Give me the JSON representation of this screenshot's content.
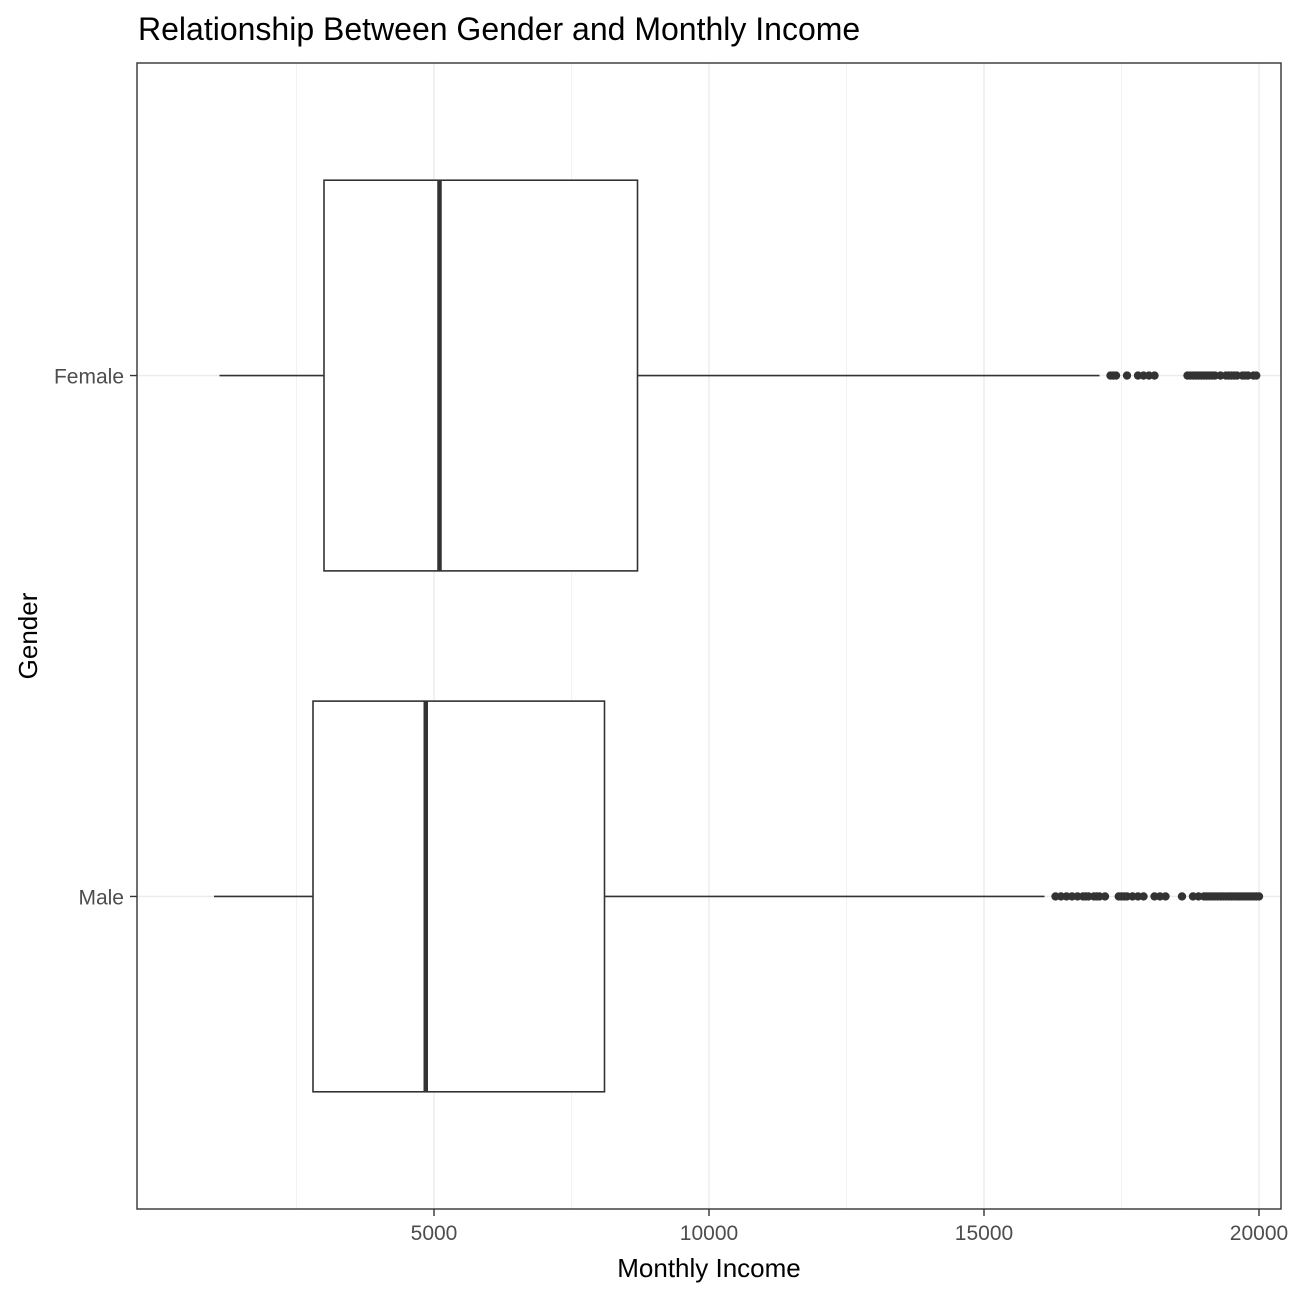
{
  "chart_data": {
    "type": "boxplot",
    "orientation": "horizontal",
    "title": "Relationship Between Gender and Monthly Income",
    "xlabel": "Monthly Income",
    "ylabel": "Gender",
    "xlim": [
      -400,
      20400
    ],
    "xticks": [
      5000,
      10000,
      15000,
      20000
    ],
    "xtick_labels": [
      "5000",
      "10000",
      "15000",
      "20000"
    ],
    "minor_xticks": [
      2500,
      7500,
      12500,
      17500
    ],
    "categories": [
      "Male",
      "Female"
    ],
    "grid": true,
    "series": [
      {
        "category": "Female",
        "whisker_low": 1100,
        "q1": 3000,
        "median": 5100,
        "q3": 8700,
        "whisker_high": 17100,
        "outliers": [
          17300,
          17350,
          17400,
          17600,
          17800,
          17900,
          18000,
          18100,
          18700,
          18750,
          18800,
          18850,
          18900,
          18950,
          19000,
          19050,
          19100,
          19150,
          19200,
          19300,
          19400,
          19450,
          19500,
          19550,
          19600,
          19700,
          19750,
          19800,
          19900,
          19950
        ]
      },
      {
        "category": "Male",
        "whisker_low": 1000,
        "q1": 2800,
        "median": 4850,
        "q3": 8100,
        "whisker_high": 16100,
        "outliers": [
          16300,
          16400,
          16500,
          16600,
          16700,
          16800,
          16850,
          16900,
          17000,
          17050,
          17100,
          17200,
          17450,
          17500,
          17550,
          17600,
          17700,
          17800,
          17900,
          18100,
          18200,
          18300,
          18600,
          18800,
          18900,
          19000,
          19050,
          19100,
          19150,
          19200,
          19250,
          19300,
          19350,
          19400,
          19450,
          19500,
          19550,
          19600,
          19650,
          19700,
          19750,
          19800,
          19850,
          19900,
          19950,
          20000
        ]
      }
    ]
  }
}
